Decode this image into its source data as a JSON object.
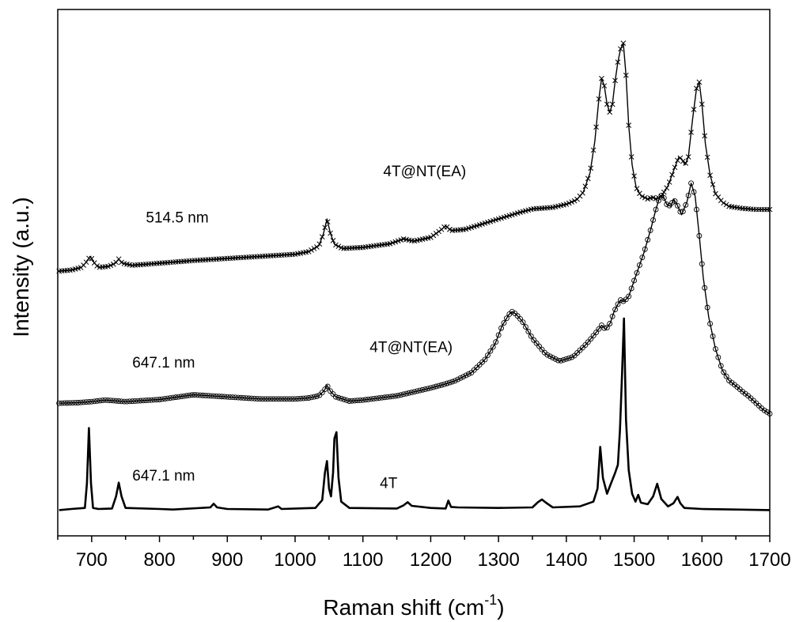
{
  "chart_data": {
    "type": "line",
    "xlabel": "Raman shift (cm",
    "xlabel_sup": "-1",
    "xlabel_close": ")",
    "ylabel": "Intensity (a.u.)",
    "xlim": [
      650,
      1700
    ],
    "ylim": [
      0,
      100
    ],
    "x_ticks": [
      700,
      800,
      900,
      1000,
      1100,
      1200,
      1300,
      1400,
      1500,
      1600,
      1700
    ],
    "y_ticks_shown": false,
    "grid": false,
    "annotations": [
      {
        "text": "4T@NT(EA)",
        "x": 1130,
        "y": 68.3
      },
      {
        "text": "514.5 nm",
        "x": 780,
        "y": 59.5
      },
      {
        "text": "4T@NT(EA)",
        "x": 1110,
        "y": 34.9
      },
      {
        "text": "647.1 nm",
        "x": 760,
        "y": 32.0
      },
      {
        "text": "4T",
        "x": 1125,
        "y": 9.1
      },
      {
        "text": "647.1 nm",
        "x": 760,
        "y": 10.5
      }
    ],
    "series": [
      {
        "marker": "x",
        "color": "#000000",
        "x": [
          652,
          670,
          685,
          692,
          698,
          703,
          710,
          725,
          735,
          740,
          745,
          760,
          800,
          850,
          900,
          950,
          1000,
          1020,
          1035,
          1042,
          1047,
          1052,
          1058,
          1070,
          1100,
          1140,
          1160,
          1175,
          1200,
          1215,
          1222,
          1230,
          1250,
          1290,
          1330,
          1350,
          1380,
          1400,
          1415,
          1425,
          1435,
          1442,
          1448,
          1452,
          1456,
          1460,
          1464,
          1468,
          1472,
          1476,
          1480,
          1484,
          1488,
          1492,
          1497,
          1503,
          1510,
          1520,
          1527,
          1533,
          1540,
          1550,
          1560,
          1566,
          1570,
          1575,
          1580,
          1586,
          1592,
          1596,
          1600,
          1605,
          1612,
          1620,
          1630,
          1640,
          1660,
          1680,
          1700
        ],
        "y": [
          50.3,
          50.5,
          51.0,
          52.0,
          53.1,
          52.0,
          51.0,
          51.2,
          51.8,
          52.6,
          51.8,
          51.4,
          51.8,
          52.3,
          52.7,
          53.1,
          53.5,
          54.0,
          55.1,
          57.5,
          60.2,
          57.5,
          55.4,
          54.6,
          54.8,
          55.5,
          56.4,
          56.0,
          56.7,
          58.1,
          58.9,
          58.0,
          58.2,
          59.8,
          61.4,
          62.1,
          62.4,
          63.0,
          63.8,
          65.3,
          69.0,
          75.0,
          83.0,
          86.9,
          85.5,
          82.0,
          80.5,
          82.0,
          86.5,
          90.0,
          92.5,
          93.6,
          87.5,
          78.0,
          70.5,
          66.2,
          64.6,
          64.0,
          64.3,
          64.0,
          64.5,
          66.5,
          70.0,
          72.0,
          71.6,
          70.5,
          72.0,
          79.0,
          85.0,
          86.2,
          82.0,
          74.5,
          68.5,
          65.0,
          63.4,
          62.6,
          62.2,
          62.0,
          62.0
        ]
      },
      {
        "marker": "o",
        "color": "#000000",
        "x": [
          652,
          680,
          700,
          720,
          750,
          800,
          850,
          900,
          950,
          1000,
          1020,
          1035,
          1043,
          1047,
          1052,
          1060,
          1080,
          1100,
          1150,
          1200,
          1220,
          1235,
          1260,
          1280,
          1295,
          1305,
          1315,
          1320,
          1325,
          1335,
          1350,
          1370,
          1390,
          1410,
          1430,
          1445,
          1452,
          1458,
          1465,
          1470,
          1476,
          1480,
          1485,
          1492,
          1500,
          1515,
          1525,
          1532,
          1538,
          1542,
          1548,
          1554,
          1558,
          1563,
          1570,
          1578,
          1584,
          1590,
          1596,
          1602,
          1610,
          1620,
          1630,
          1640,
          1650,
          1660,
          1670,
          1680,
          1690,
          1700
        ],
        "y": [
          25.2,
          25.3,
          25.5,
          25.8,
          25.5,
          25.9,
          26.8,
          26.4,
          26.0,
          26.0,
          26.2,
          26.6,
          27.6,
          28.6,
          27.5,
          26.4,
          25.6,
          25.8,
          26.6,
          28.1,
          28.8,
          29.4,
          31.0,
          33.5,
          36.5,
          39.8,
          42.0,
          42.6,
          42.2,
          40.8,
          37.5,
          34.5,
          33.2,
          34.0,
          36.5,
          38.8,
          40.0,
          39.2,
          40.5,
          42.5,
          44.0,
          44.8,
          44.5,
          45.5,
          48.5,
          54.0,
          58.5,
          62.0,
          64.5,
          64.8,
          63.0,
          62.6,
          64.0,
          63.0,
          61.0,
          63.5,
          67.0,
          64.5,
          57.0,
          49.0,
          41.5,
          35.5,
          31.5,
          29.5,
          28.5,
          27.4,
          26.4,
          25.2,
          24.0,
          23.2
        ]
      },
      {
        "marker": "none",
        "color": "#000000",
        "x": [
          652,
          670,
          690,
          693,
          696,
          699,
          702,
          710,
          730,
          736,
          740,
          744,
          750,
          800,
          820,
          875,
          880,
          885,
          900,
          960,
          975,
          980,
          1030,
          1040,
          1044,
          1047,
          1050,
          1053,
          1056,
          1058,
          1061,
          1064,
          1068,
          1080,
          1150,
          1160,
          1166,
          1172,
          1200,
          1222,
          1226,
          1230,
          1240,
          1300,
          1350,
          1358,
          1364,
          1370,
          1380,
          1420,
          1440,
          1446,
          1450,
          1454,
          1460,
          1466,
          1472,
          1476,
          1479,
          1482,
          1485,
          1488,
          1492,
          1497,
          1502,
          1506,
          1510,
          1520,
          1528,
          1534,
          1540,
          1550,
          1558,
          1564,
          1568,
          1574,
          1600,
          1650,
          1700
        ],
        "y": [
          4.9,
          5.1,
          5.3,
          10.0,
          20.5,
          10.0,
          5.3,
          5.1,
          5.2,
          7.5,
          10.1,
          7.5,
          5.3,
          5.1,
          5.0,
          5.4,
          6.1,
          5.4,
          5.1,
          5.0,
          5.6,
          5.1,
          5.3,
          6.8,
          12.0,
          14.2,
          9.0,
          7.5,
          12.0,
          18.5,
          19.7,
          11.0,
          6.5,
          5.3,
          5.2,
          5.8,
          6.4,
          5.7,
          5.3,
          5.2,
          6.7,
          5.5,
          5.4,
          5.3,
          5.4,
          6.4,
          6.9,
          6.3,
          5.4,
          5.6,
          6.5,
          9.0,
          16.9,
          11.0,
          8.0,
          10.0,
          12.0,
          13.5,
          20.0,
          30.0,
          41.3,
          22.0,
          12.5,
          8.0,
          6.5,
          7.8,
          6.3,
          6.0,
          7.5,
          9.9,
          7.0,
          5.6,
          6.2,
          7.4,
          6.2,
          5.3,
          5.1,
          5.0,
          4.9
        ]
      }
    ]
  }
}
